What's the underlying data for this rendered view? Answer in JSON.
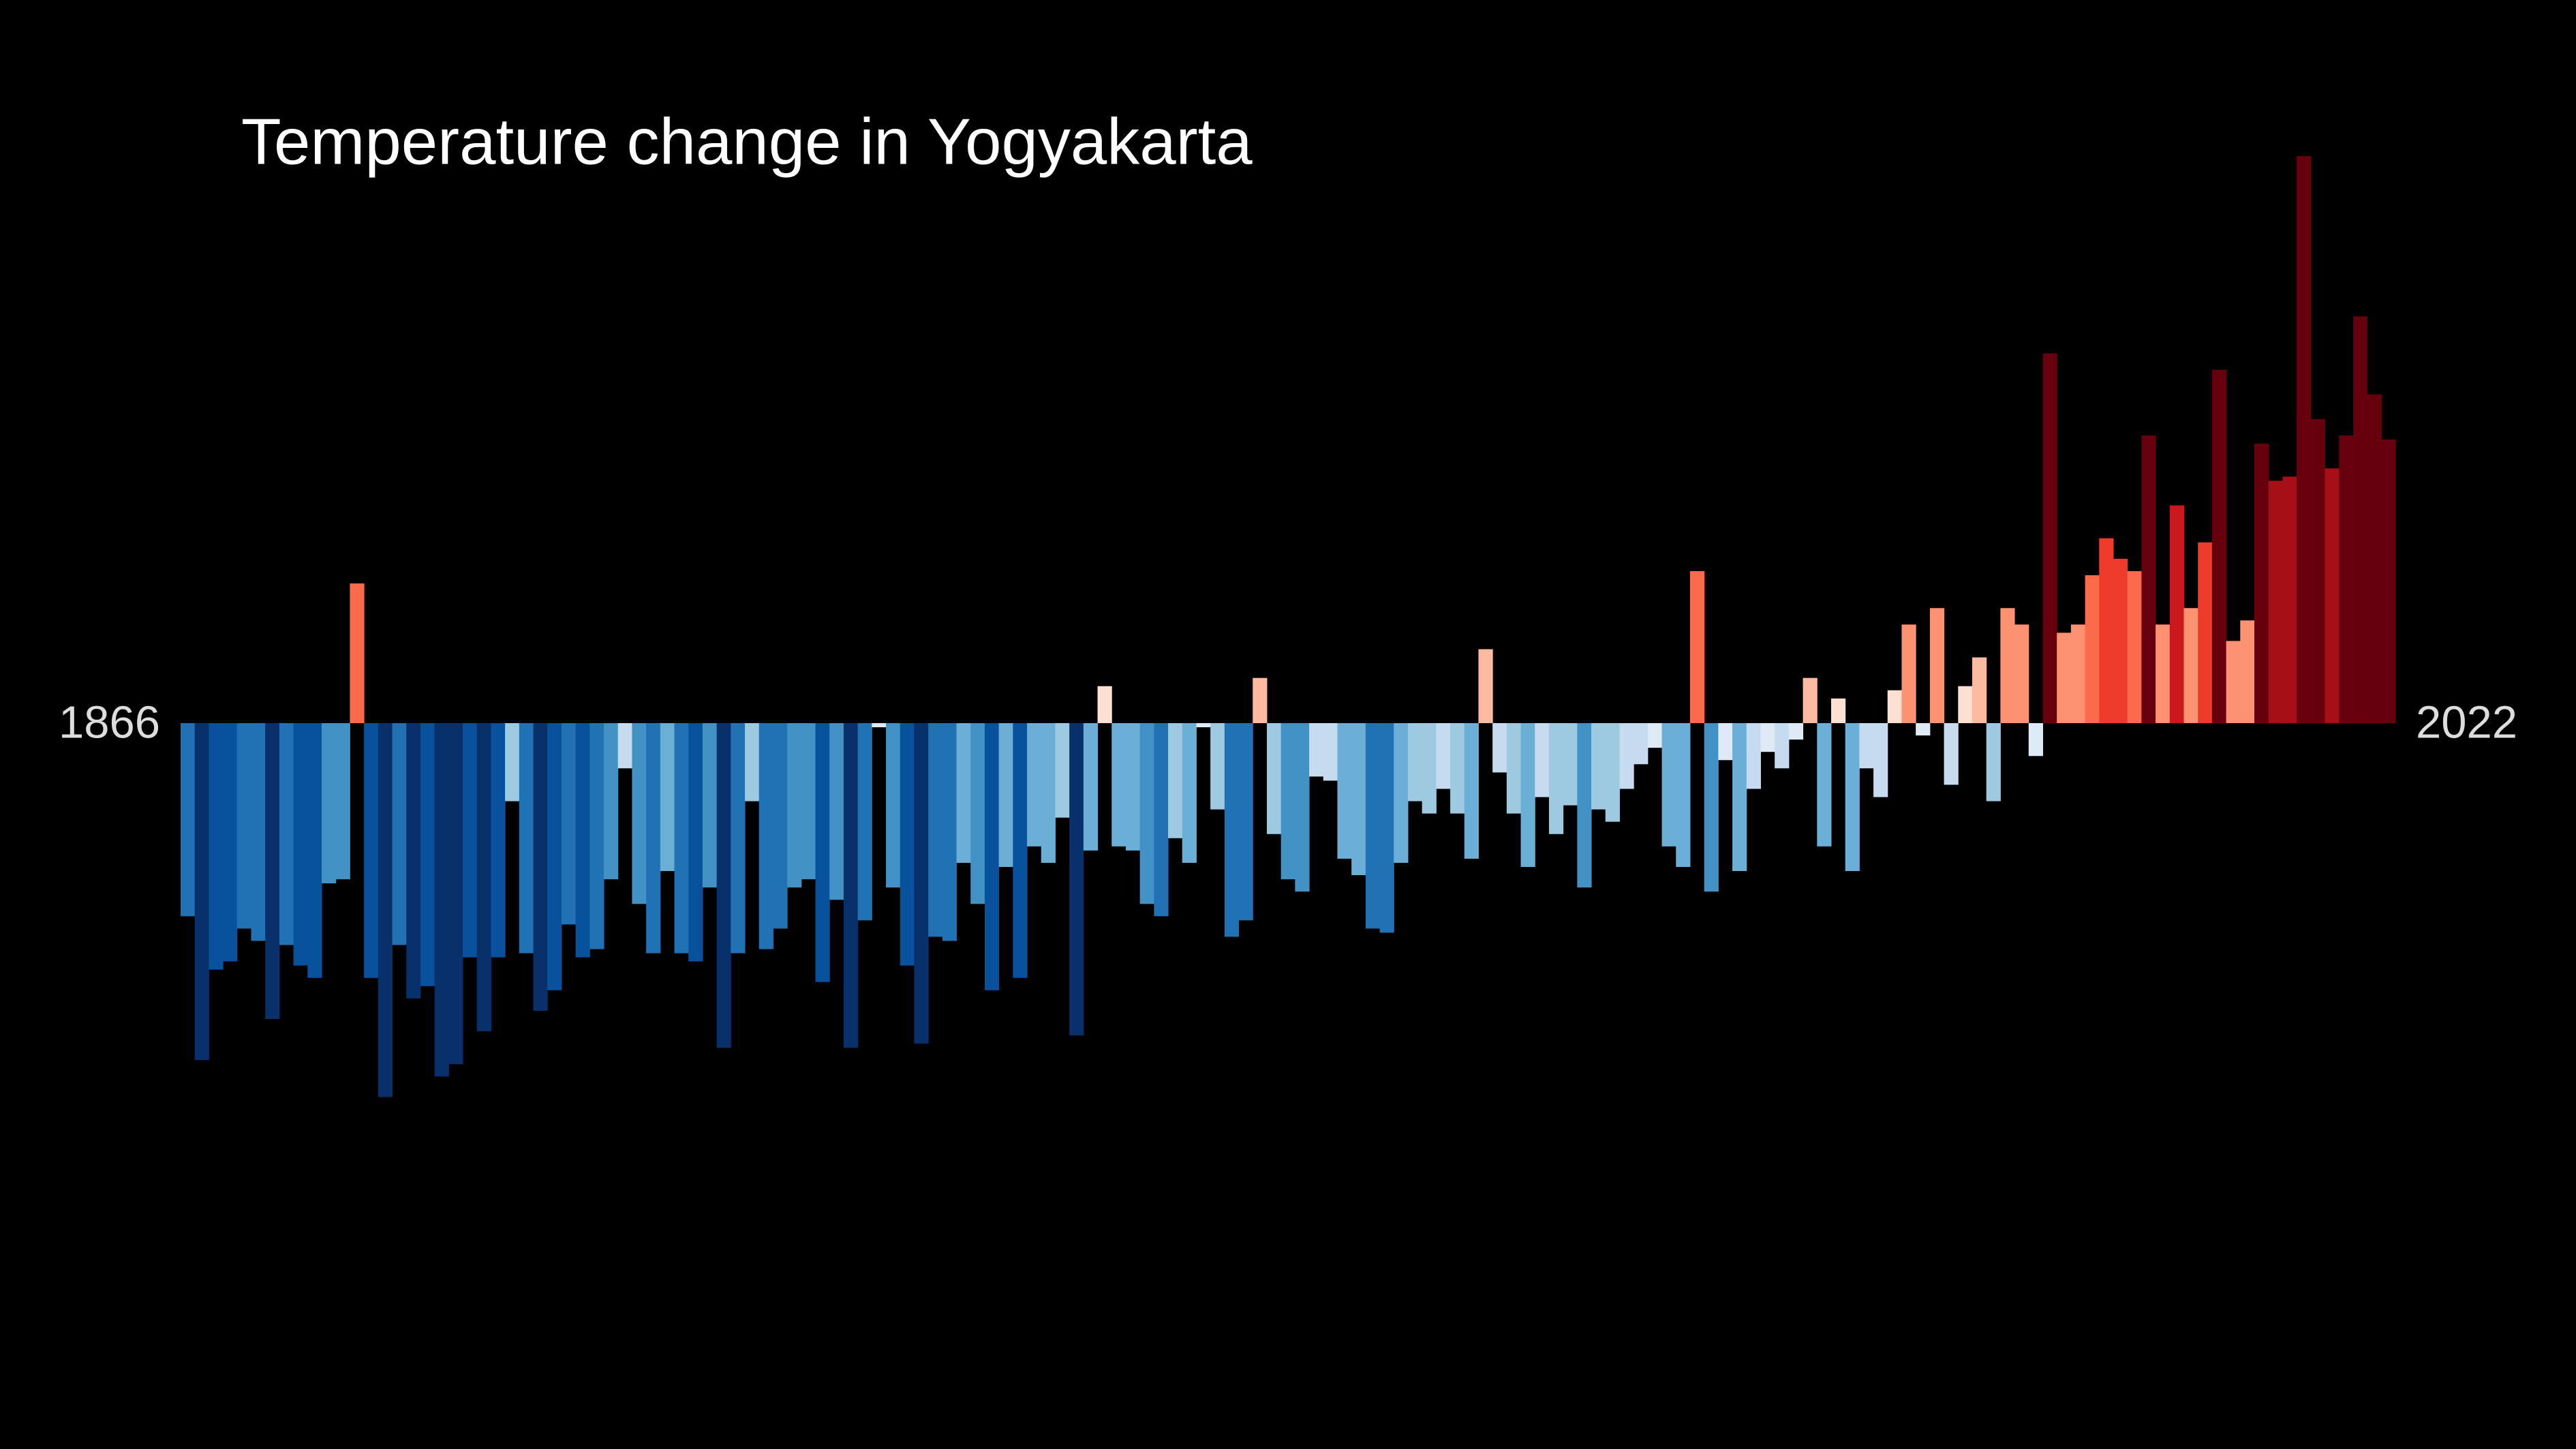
{
  "chart_data": {
    "type": "stripes-bar",
    "title": "Temperature change in Yogyakarta",
    "x": [
      1866,
      1867,
      1868,
      1869,
      1870,
      1871,
      1872,
      1873,
      1874,
      1875,
      1876,
      1877,
      1878,
      1879,
      1880,
      1881,
      1882,
      1883,
      1884,
      1885,
      1886,
      1887,
      1888,
      1889,
      1890,
      1891,
      1892,
      1893,
      1894,
      1895,
      1896,
      1897,
      1898,
      1899,
      1900,
      1901,
      1902,
      1903,
      1904,
      1905,
      1906,
      1907,
      1908,
      1909,
      1910,
      1911,
      1912,
      1913,
      1914,
      1915,
      1916,
      1917,
      1918,
      1919,
      1920,
      1921,
      1922,
      1923,
      1924,
      1925,
      1926,
      1927,
      1928,
      1929,
      1930,
      1931,
      1932,
      1933,
      1934,
      1935,
      1936,
      1937,
      1938,
      1939,
      1940,
      1941,
      1942,
      1943,
      1944,
      1945,
      1946,
      1947,
      1948,
      1949,
      1950,
      1951,
      1952,
      1953,
      1954,
      1955,
      1956,
      1957,
      1958,
      1959,
      1960,
      1961,
      1962,
      1963,
      1964,
      1965,
      1966,
      1967,
      1968,
      1969,
      1970,
      1971,
      1972,
      1973,
      1974,
      1975,
      1976,
      1977,
      1978,
      1979,
      1980,
      1981,
      1982,
      1983,
      1984,
      1985,
      1986,
      1987,
      1988,
      1989,
      1990,
      1991,
      1992,
      1993,
      1994,
      1995,
      1996,
      1997,
      1998,
      1999,
      2000,
      2001,
      2002,
      2003,
      2004,
      2005,
      2006,
      2007,
      2008,
      2009,
      2010,
      2011,
      2012,
      2013,
      2014,
      2015,
      2016,
      2017,
      2018,
      2019,
      2020,
      2021,
      2022
    ],
    "values": [
      -0.47,
      -0.82,
      -0.6,
      -0.58,
      -0.5,
      -0.53,
      -0.72,
      -0.54,
      -0.59,
      -0.62,
      -0.39,
      -0.38,
      0.34,
      -0.62,
      -0.91,
      -0.54,
      -0.67,
      -0.64,
      -0.86,
      -0.83,
      -0.57,
      -0.75,
      -0.57,
      -0.19,
      -0.56,
      -0.7,
      -0.65,
      -0.49,
      -0.57,
      -0.55,
      -0.38,
      -0.11,
      -0.44,
      -0.56,
      -0.36,
      -0.56,
      -0.58,
      -0.4,
      -0.79,
      -0.56,
      -0.19,
      -0.55,
      -0.5,
      -0.4,
      -0.38,
      -0.63,
      -0.43,
      -0.79,
      -0.48,
      -0.01,
      -0.4,
      -0.59,
      -0.78,
      -0.52,
      -0.53,
      -0.34,
      -0.44,
      -0.65,
      -0.35,
      -0.62,
      -0.3,
      -0.34,
      -0.23,
      -0.76,
      -0.31,
      0.09,
      -0.3,
      -0.31,
      -0.44,
      -0.47,
      -0.28,
      -0.34,
      -0.01,
      -0.21,
      -0.52,
      -0.48,
      0.11,
      -0.27,
      -0.38,
      -0.41,
      -0.13,
      -0.14,
      -0.33,
      -0.37,
      -0.5,
      -0.51,
      -0.34,
      -0.19,
      -0.22,
      -0.16,
      -0.22,
      -0.33,
      0.18,
      -0.12,
      -0.22,
      -0.35,
      -0.18,
      -0.27,
      -0.2,
      -0.4,
      -0.21,
      -0.24,
      -0.16,
      -0.1,
      -0.06,
      -0.3,
      -0.35,
      0.37,
      -0.41,
      -0.09,
      -0.36,
      -0.16,
      -0.07,
      -0.11,
      -0.04,
      0.11,
      -0.3,
      0.06,
      -0.36,
      -0.11,
      -0.18,
      0.08,
      0.24,
      -0.03,
      0.28,
      -0.15,
      0.09,
      0.16,
      -0.19,
      0.28,
      0.24,
      -0.08,
      0.9,
      0.22,
      0.24,
      0.36,
      0.45,
      0.4,
      0.37,
      0.7,
      0.24,
      0.53,
      0.28,
      0.44,
      0.86,
      0.2,
      0.25,
      0.68,
      0.59,
      0.6,
      1.38,
      0.74,
      0.62,
      0.7,
      0.99,
      0.8,
      0.69
    ],
    "ylim": [
      -1.76,
      1.76
    ],
    "colormap": [
      "#08306b",
      "#08519c",
      "#2171b5",
      "#4292c6",
      "#6baed6",
      "#9ecae1",
      "#c6dbef",
      "#deebf7",
      "#fee0d2",
      "#fcbba1",
      "#fc9272",
      "#fb6a4a",
      "#ef3b2c",
      "#cb181d",
      "#a50f15",
      "#67000d"
    ],
    "clim": [
      -0.75,
      0.75
    ]
  }
}
